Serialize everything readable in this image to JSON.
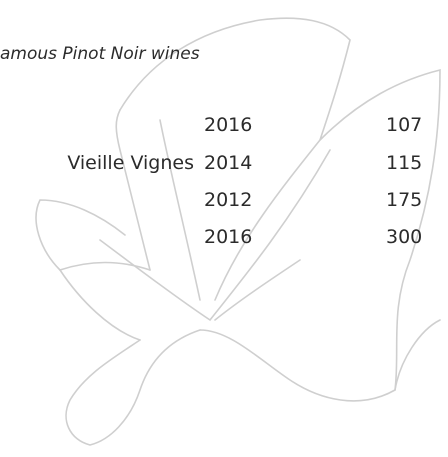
{
  "heading": "amous Pinot Noir wines",
  "table": {
    "rows": [
      {
        "year": "2016",
        "price": "107"
      },
      {
        "name": "Vieille Vignes",
        "year": "2014",
        "price": "115"
      },
      {
        "year": "2012",
        "price": "175"
      },
      {
        "year": "2016",
        "price": "300"
      }
    ]
  }
}
